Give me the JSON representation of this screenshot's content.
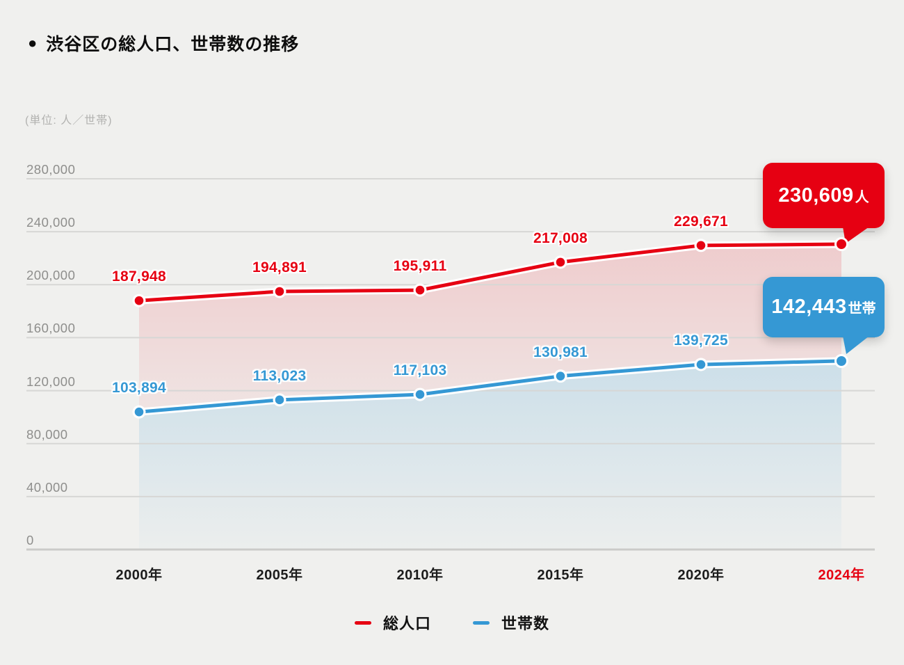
{
  "title": {
    "bullet": "●",
    "text": "渋谷区の総人口、世帯数の推移"
  },
  "unit_label": "(単位: 人／世帯)",
  "chart_data": {
    "type": "line",
    "title": "渋谷区の総人口、世帯数の推移",
    "categories": [
      "2000年",
      "2005年",
      "2010年",
      "2015年",
      "2020年",
      "2024年"
    ],
    "series": [
      {
        "name": "総人口",
        "color": "#e60012",
        "values": [
          187948,
          194891,
          195911,
          217008,
          229671,
          230609
        ],
        "point_labels": [
          "187,948",
          "194,891",
          "195,911",
          "217,008",
          "229,671",
          ""
        ]
      },
      {
        "name": "世帯数",
        "color": "#3598d4",
        "values": [
          103894,
          113023,
          117103,
          130981,
          139725,
          142443
        ],
        "point_labels": [
          "103,894",
          "113,023",
          "117,103",
          "130,981",
          "139,725",
          ""
        ]
      }
    ],
    "ylim": [
      0,
      280000
    ],
    "yticks": [
      0,
      40000,
      80000,
      120000,
      160000,
      200000,
      240000,
      280000
    ],
    "ytick_labels": [
      "0",
      "40,000",
      "80,000",
      "120,000",
      "160,000",
      "200,000",
      "240,000",
      "280,000"
    ],
    "grid": true,
    "legend_position": "bottom",
    "highlighted_category": "2024年",
    "highlight_color": "#e60012"
  },
  "callouts": {
    "population": {
      "value": "230,609",
      "suffix": "人",
      "color": "#e60012"
    },
    "households": {
      "value": "142,443",
      "suffix": "世帯",
      "color": "#3598d4"
    }
  },
  "legend": {
    "items": [
      {
        "label": "総人口",
        "color": "#e60012"
      },
      {
        "label": "世帯数",
        "color": "#3598d4"
      }
    ]
  },
  "colors": {
    "background": "#f0f0ee",
    "gridline": "#d7d7d5",
    "baseline": "#cbcbc9",
    "ytick_text": "#8e8e8c",
    "xtick_text": "#1c1c1c"
  }
}
